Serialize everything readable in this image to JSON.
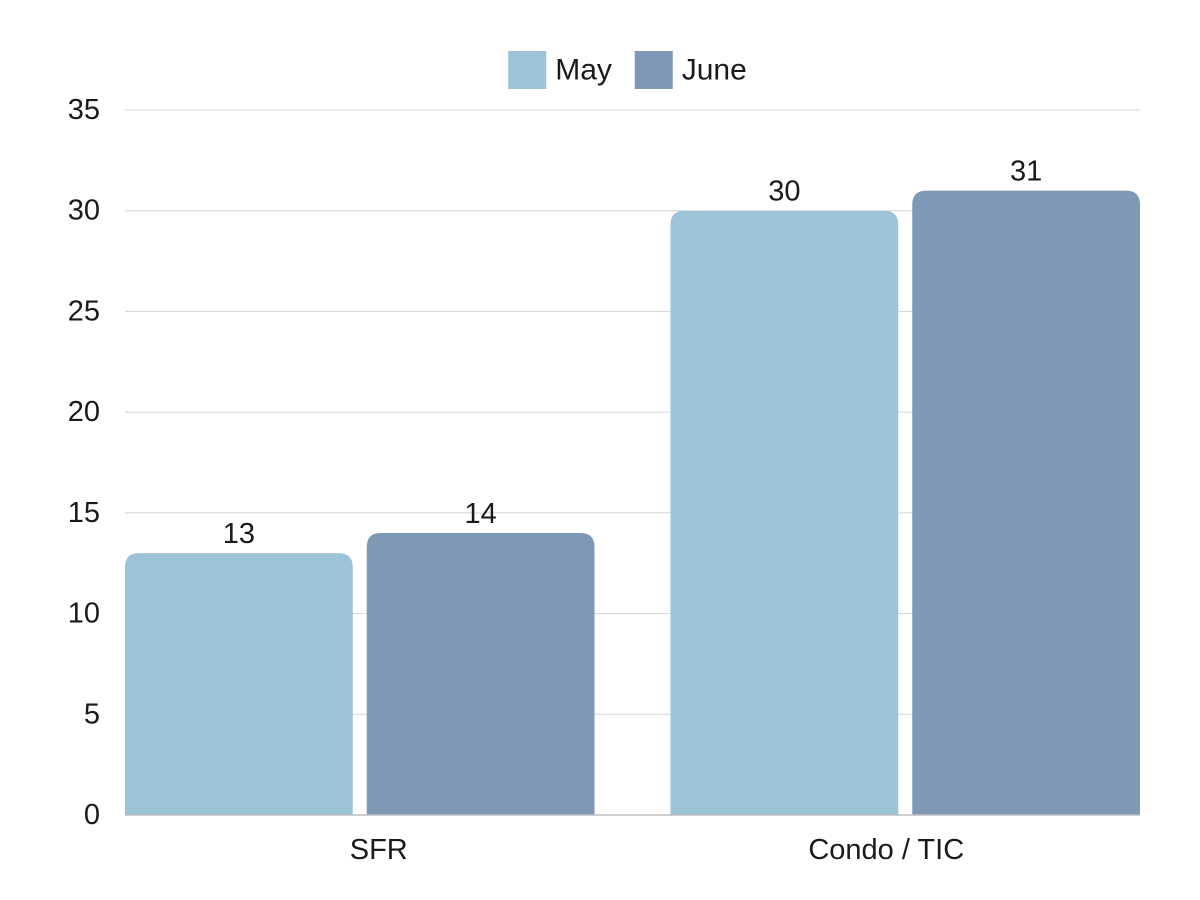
{
  "chart_data": {
    "type": "bar",
    "title": "",
    "xlabel": "",
    "ylabel": "",
    "categories": [
      "SFR",
      "Condo / TIC"
    ],
    "series": [
      {
        "name": "May",
        "values": [
          13,
          30
        ],
        "color": "#9cc3d8"
      },
      {
        "name": "June",
        "values": [
          14,
          31
        ],
        "color": "#7f98b5"
      }
    ],
    "ylim": [
      0,
      35
    ],
    "yticks": [
      0,
      5,
      10,
      15,
      20,
      25,
      30,
      35
    ],
    "grid": true,
    "legend_position": "top-center",
    "data_labels": true
  }
}
